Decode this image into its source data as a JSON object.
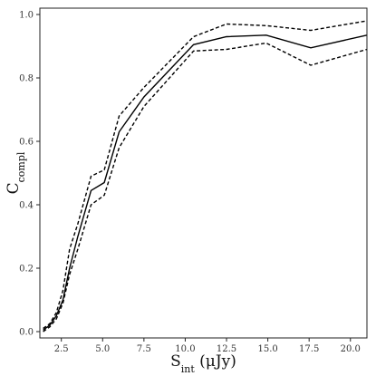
{
  "chart_data": {
    "type": "line",
    "xlabel": {
      "main": "S",
      "sub": "int",
      "unit": " (μJy)"
    },
    "ylabel": {
      "main": "C",
      "sub": "compl"
    },
    "xlim": [
      1.2,
      21.0
    ],
    "ylim": [
      -0.02,
      1.02
    ],
    "xticks": [
      "2.5",
      "5.0",
      "7.5",
      "10.0",
      "12.5",
      "15.0",
      "17.5",
      "20.0"
    ],
    "yticks": [
      "0.0",
      "0.2",
      "0.4",
      "0.6",
      "0.8",
      "1.0"
    ],
    "grid": false,
    "series": [
      {
        "style": "solid",
        "x": [
          1.4,
          1.8,
          2.2,
          2.6,
          3.0,
          3.5,
          4.3,
          5.1,
          6.0,
          7.5,
          10.5,
          12.5,
          14.9,
          17.6,
          21.0
        ],
        "y": [
          0.005,
          0.02,
          0.05,
          0.1,
          0.2,
          0.3,
          0.445,
          0.47,
          0.63,
          0.74,
          0.905,
          0.93,
          0.935,
          0.895,
          0.935
        ]
      },
      {
        "style": "dashed",
        "x": [
          1.4,
          1.8,
          2.2,
          2.6,
          3.0,
          3.5,
          4.3,
          5.1,
          6.0,
          7.5,
          10.5,
          12.5,
          14.9,
          17.6,
          21.0
        ],
        "y": [
          0.01,
          0.025,
          0.06,
          0.13,
          0.26,
          0.34,
          0.49,
          0.51,
          0.68,
          0.77,
          0.93,
          0.97,
          0.965,
          0.95,
          0.98
        ]
      },
      {
        "style": "dashed",
        "x": [
          1.4,
          1.8,
          2.2,
          2.6,
          3.0,
          3.5,
          4.3,
          5.1,
          6.0,
          7.5,
          10.5,
          12.5,
          14.9,
          17.6,
          21.0
        ],
        "y": [
          0.0,
          0.015,
          0.04,
          0.09,
          0.18,
          0.26,
          0.4,
          0.43,
          0.58,
          0.71,
          0.885,
          0.89,
          0.91,
          0.84,
          0.89
        ]
      }
    ]
  }
}
